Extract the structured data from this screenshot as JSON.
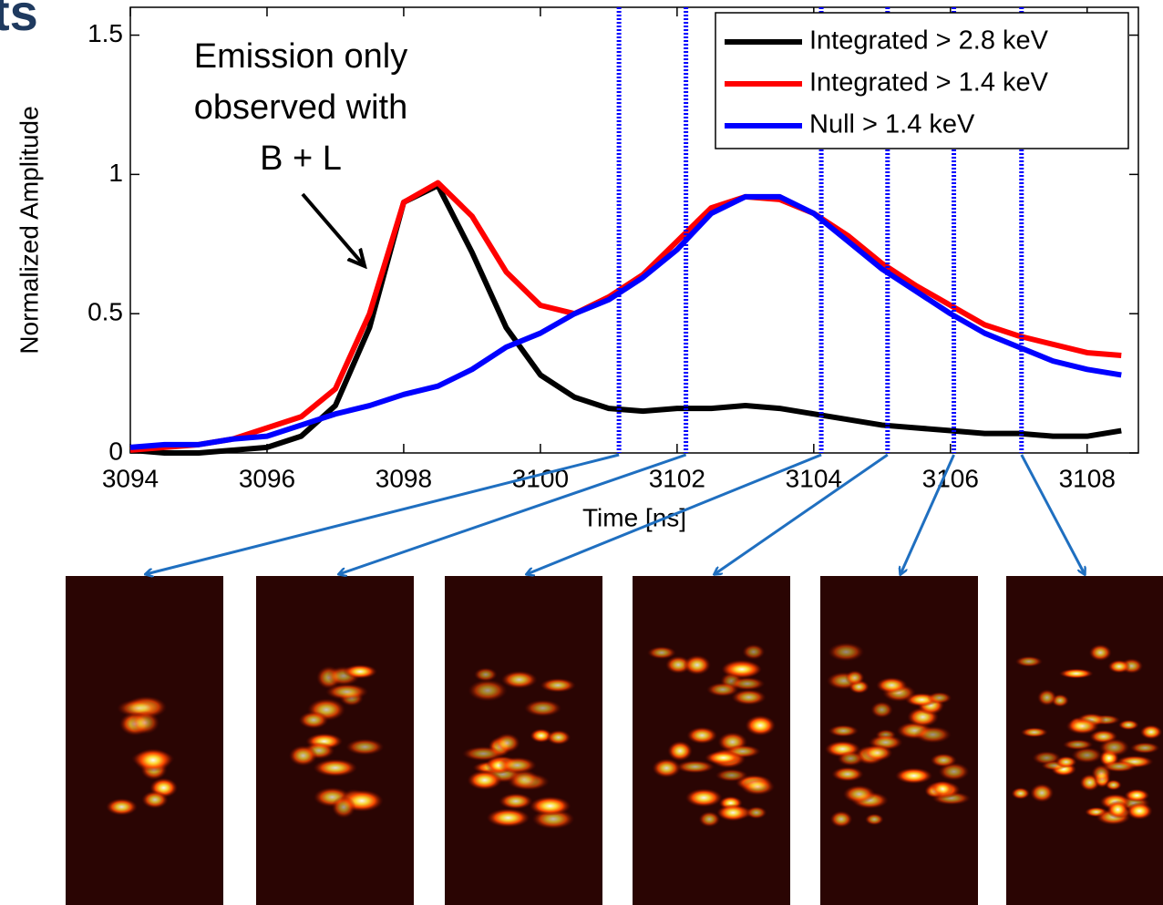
{
  "header_fragment": "ts",
  "chart_data": {
    "type": "line",
    "xlabel": "Time [ns]",
    "ylabel": "Normalized Amplitude",
    "annotation": [
      "Emission only",
      "observed with",
      "B + L"
    ],
    "x": [
      3094,
      3094.5,
      3095,
      3095.5,
      3096,
      3096.5,
      3097,
      3097.5,
      3098,
      3098.5,
      3099,
      3099.5,
      3100,
      3100.5,
      3101,
      3101.5,
      3102,
      3102.5,
      3103,
      3103.5,
      3104,
      3104.5,
      3105,
      3105.5,
      3106,
      3106.5,
      3107,
      3107.5,
      3108,
      3108.5
    ],
    "series": [
      {
        "name": "Integrated > 2.8 keV",
        "color": "#000000",
        "values": [
          0.01,
          0.0,
          0.0,
          0.01,
          0.02,
          0.06,
          0.17,
          0.45,
          0.9,
          0.96,
          0.72,
          0.45,
          0.28,
          0.2,
          0.16,
          0.15,
          0.16,
          0.16,
          0.17,
          0.16,
          0.14,
          0.12,
          0.1,
          0.09,
          0.08,
          0.07,
          0.07,
          0.06,
          0.06,
          0.08
        ]
      },
      {
        "name": "Integrated > 1.4 keV",
        "color": "#ff0000",
        "values": [
          0.01,
          0.02,
          0.03,
          0.05,
          0.09,
          0.13,
          0.23,
          0.5,
          0.9,
          0.97,
          0.85,
          0.65,
          0.53,
          0.5,
          0.56,
          0.64,
          0.76,
          0.88,
          0.92,
          0.91,
          0.86,
          0.78,
          0.68,
          0.6,
          0.53,
          0.46,
          0.42,
          0.39,
          0.36,
          0.35
        ]
      },
      {
        "name": "Null > 1.4 keV",
        "color": "#0000ff",
        "values": [
          0.02,
          0.03,
          0.03,
          0.05,
          0.06,
          0.1,
          0.14,
          0.17,
          0.21,
          0.24,
          0.3,
          0.38,
          0.43,
          0.5,
          0.55,
          0.63,
          0.73,
          0.86,
          0.92,
          0.92,
          0.86,
          0.76,
          0.66,
          0.58,
          0.5,
          0.43,
          0.38,
          0.33,
          0.3,
          0.28
        ]
      }
    ],
    "markers_x": [
      3101.15,
      3102.13,
      3104.11,
      3105.08,
      3106.05,
      3107.04
    ],
    "marker_color": "#0000ff",
    "xlim": [
      3094,
      3108.75
    ],
    "ylim": [
      0,
      1.6
    ],
    "xticks": [
      3094,
      3096,
      3098,
      3100,
      3102,
      3104,
      3106,
      3108
    ],
    "yticks": [
      0,
      0.5,
      1,
      1.5
    ],
    "legend": "upper right"
  }
}
